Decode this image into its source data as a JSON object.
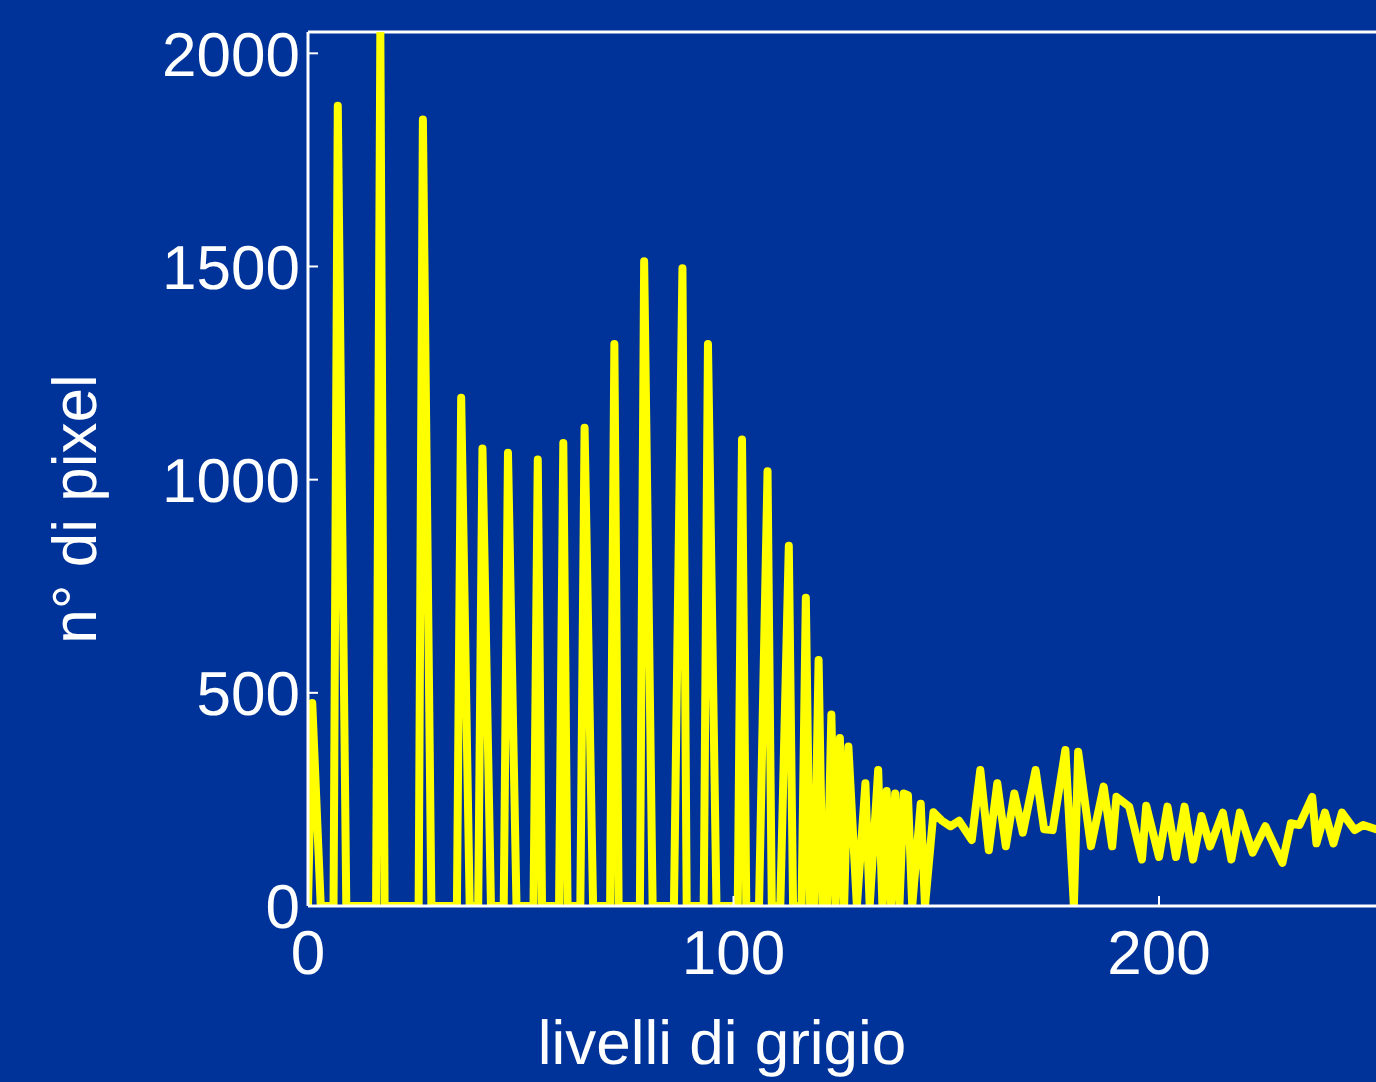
{
  "chart_data": {
    "type": "line",
    "xlabel": "livelli di grigio",
    "ylabel": "n° di pixel",
    "xlim": [
      0,
      251
    ],
    "ylim": [
      0,
      2050
    ],
    "xticks": [
      0,
      100,
      200
    ],
    "yticks": [
      0,
      500,
      1000,
      1500,
      2000
    ],
    "grid": false,
    "marker": "none",
    "line_style": "solid",
    "series": [
      {
        "color": "#ffff00",
        "x": [
          0,
          1,
          3,
          6,
          7,
          9,
          16,
          17,
          18,
          26,
          27,
          29,
          35,
          36,
          38,
          40,
          41,
          43,
          46,
          47,
          49,
          53,
          54,
          55,
          59,
          60,
          61,
          64,
          65,
          67,
          71,
          72,
          73,
          78,
          79,
          81,
          86,
          88,
          89,
          93,
          94,
          96,
          101,
          102,
          103,
          106,
          108,
          109,
          111,
          113,
          114,
          116,
          117,
          118,
          119,
          120,
          121,
          122,
          123,
          124,
          125,
          126,
          127,
          129,
          131,
          132,
          134,
          135,
          136,
          137,
          138,
          139,
          140,
          141,
          142,
          144,
          145,
          147,
          149,
          151,
          153,
          156,
          158,
          160,
          162,
          164,
          166,
          168,
          171,
          173,
          175,
          178,
          180,
          181,
          184,
          187,
          189,
          190,
          193,
          196,
          197,
          200,
          202,
          204,
          206,
          208,
          210,
          212,
          215,
          217,
          219,
          222,
          225,
          229,
          231,
          233,
          236,
          237,
          239,
          241,
          243,
          246,
          248,
          251
        ],
        "values": [
          0,
          476,
          0,
          0,
          1877,
          0,
          0,
          2050,
          0,
          0,
          1845,
          0,
          0,
          1192,
          0,
          0,
          1073,
          0,
          0,
          1063,
          0,
          0,
          1047,
          0,
          0,
          1086,
          0,
          0,
          1122,
          0,
          0,
          1318,
          0,
          0,
          1512,
          0,
          0,
          1496,
          0,
          0,
          1318,
          0,
          0,
          1094,
          0,
          0,
          1020,
          0,
          0,
          845,
          0,
          0,
          723,
          0,
          0,
          577,
          0,
          0,
          449,
          0,
          394,
          0,
          374,
          0,
          288,
          0,
          319,
          0,
          270,
          0,
          264,
          0,
          264,
          260,
          0,
          240,
          0,
          220,
          200,
          187,
          200,
          155,
          319,
          131,
          288,
          140,
          264,
          172,
          319,
          180,
          178,
          366,
          0,
          362,
          140,
          280,
          140,
          256,
          233,
          109,
          235,
          115,
          233,
          115,
          233,
          109,
          211,
          140,
          219,
          109,
          219,
          125,
          187,
          101,
          194,
          190,
          256,
          147,
          219,
          147,
          219,
          178,
          190,
          180
        ]
      }
    ]
  }
}
